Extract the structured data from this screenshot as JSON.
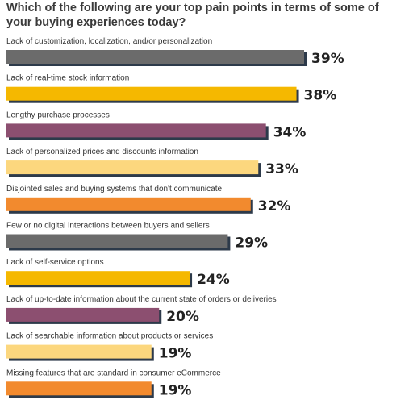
{
  "chart_data": {
    "type": "bar",
    "orientation": "horizontal",
    "title": "Which of the following are your top pain points in terms of some of your buying experiences today?",
    "categories": [
      "Lack of customization, localization, and/or personalization",
      "Lack of real-time stock information",
      "Lengthy purchase processes",
      "Lack of personalized prices and discounts information",
      "Disjointed sales and buying systems that don't communicate",
      "Few or no digital interactions between buyers and sellers",
      "Lack of self-service options",
      "Lack of up-to-date information about the current state of orders or deliveries",
      "Lack of searchable information about products or services",
      "Missing features that are standard in consumer eCommerce"
    ],
    "values": [
      39,
      38,
      34,
      33,
      32,
      29,
      24,
      20,
      19,
      19
    ],
    "value_labels": [
      "39%",
      "38%",
      "34%",
      "33%",
      "32%",
      "29%",
      "24%",
      "20%",
      "19%",
      "19%"
    ],
    "colors": [
      "#6b6b6b",
      "#f5b800",
      "#8c4f70",
      "#fcd77e",
      "#f28a2e",
      "#6b6b6b",
      "#f5b800",
      "#8c4f70",
      "#fcd77e",
      "#f28a2e"
    ],
    "shadow_color": "#2d3a4a",
    "xlim": [
      0,
      39
    ],
    "grid": false,
    "legend": "none"
  }
}
